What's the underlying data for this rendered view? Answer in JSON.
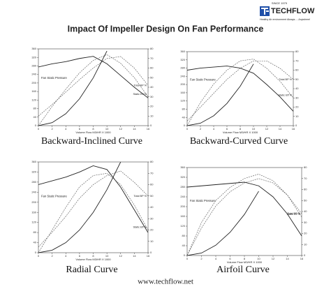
{
  "header": {
    "since": "SINCE 1979",
    "brand": "TECHFLOW",
    "tagline": "Healthy Air environment Always.....Anywhere!"
  },
  "title": "Impact Of Impeller Design On Fan Performance",
  "footer": "www.techflow.net",
  "chart_data": [
    {
      "type": "line",
      "title": "Backward-Inclined Curve",
      "x_label": "Volume Flow M3/HR X 1000",
      "y_label": "Fan Static Pressure",
      "x": [
        0,
        2,
        4,
        6,
        8,
        10,
        12,
        14,
        16
      ],
      "xlim": [
        0,
        16
      ],
      "xticks": [
        0,
        2,
        4,
        6,
        8,
        10,
        12,
        14,
        16
      ],
      "ylim": [
        0,
        360
      ],
      "yticks": [
        0,
        40,
        80,
        120,
        160,
        200,
        240,
        280,
        320,
        360
      ],
      "y2lim": [
        0,
        80
      ],
      "y2ticks": [
        0,
        10,
        20,
        30,
        40,
        50,
        60,
        70,
        80
      ],
      "series": [
        {
          "name": "Fan Static Pressure",
          "color": "#222222",
          "style": "solid",
          "values": [
            275,
            290,
            300,
            315,
            325,
            290,
            235,
            180,
            130
          ]
        },
        {
          "name": "Static Eff %",
          "color": "#555555",
          "style": "dashed",
          "axis": "y2",
          "values": [
            0,
            20,
            38,
            55,
            68,
            74,
            65,
            50,
            30
          ]
        },
        {
          "name": "Total BP %",
          "color": "#555555",
          "style": "dashed",
          "axis": "y2",
          "values": [
            10,
            22,
            35,
            48,
            60,
            70,
            72,
            60,
            42
          ]
        },
        {
          "color": "#222222",
          "style": "solid",
          "values": [
            0,
            14,
            56,
            126,
            224,
            350,
            null,
            null,
            null
          ]
        }
      ]
    },
    {
      "type": "line",
      "title": "Backward-Curved Curve",
      "x_label": "Volume Flow M3/HR X 1000",
      "y_label": "Fan Static Pressure",
      "x": [
        0,
        2,
        4,
        6,
        8,
        10,
        12,
        14,
        16
      ],
      "xlim": [
        0,
        16
      ],
      "xticks": [
        0,
        2,
        4,
        6,
        8,
        10,
        12,
        14,
        16
      ],
      "ylim": [
        0,
        360
      ],
      "yticks": [
        0,
        40,
        80,
        120,
        160,
        200,
        240,
        280,
        320,
        360
      ],
      "y2lim": [
        0,
        80
      ],
      "y2ticks": [
        0,
        10,
        20,
        30,
        40,
        50,
        60,
        70,
        80
      ],
      "series": [
        {
          "name": "Fan Static Pressure",
          "color": "#222222",
          "style": "solid",
          "values": [
            270,
            280,
            285,
            290,
            280,
            255,
            200,
            140,
            70
          ]
        },
        {
          "name": "Static Eff %",
          "color": "#555555",
          "style": "dashed",
          "axis": "y2",
          "values": [
            0,
            25,
            45,
            60,
            70,
            72,
            62,
            48,
            30
          ]
        },
        {
          "name": "Total BP %",
          "color": "#555555",
          "style": "dashed",
          "axis": "y2",
          "values": [
            5,
            20,
            35,
            50,
            62,
            70,
            70,
            62,
            50
          ]
        },
        {
          "color": "#222222",
          "style": "solid",
          "values": [
            0,
            12,
            48,
            108,
            192,
            300,
            null,
            null,
            null
          ]
        }
      ]
    },
    {
      "type": "line",
      "title": "Radial Curve",
      "x_label": "Volume Flow M3/HR X 1000",
      "y_label": "Fan Static Pressure",
      "x": [
        0,
        2,
        4,
        6,
        8,
        10,
        12,
        14,
        16
      ],
      "xlim": [
        0,
        16
      ],
      "xticks": [
        0,
        2,
        4,
        6,
        8,
        10,
        12,
        14,
        16
      ],
      "ylim": [
        0,
        360
      ],
      "yticks": [
        0,
        40,
        80,
        120,
        160,
        200,
        240,
        280,
        320,
        360
      ],
      "y2lim": [
        0,
        80
      ],
      "y2ticks": [
        0,
        10,
        20,
        30,
        40,
        50,
        60,
        70,
        80
      ],
      "series": [
        {
          "name": "Fan Static Pressure",
          "color": "#222222",
          "style": "solid",
          "values": [
            270,
            285,
            300,
            320,
            345,
            330,
            260,
            170,
            80
          ]
        },
        {
          "name": "Static Eff %",
          "color": "#555555",
          "style": "dashed",
          "axis": "y2",
          "values": [
            0,
            20,
            40,
            58,
            68,
            70,
            60,
            42,
            20
          ]
        },
        {
          "name": "Total BP %",
          "color": "#555555",
          "style": "dashed",
          "axis": "y2",
          "values": [
            5,
            18,
            32,
            48,
            60,
            68,
            72,
            62,
            50
          ]
        },
        {
          "color": "#222222",
          "style": "solid",
          "values": [
            0,
            10,
            40,
            90,
            160,
            250,
            360,
            null,
            null
          ]
        }
      ]
    },
    {
      "type": "line",
      "title": "Airfoil Curve",
      "x_label": "Volume Flow M3/HR X 1000",
      "y_label": "Fan Static Pressure",
      "x": [
        0,
        2,
        4,
        6,
        8,
        10,
        12,
        14,
        16
      ],
      "xlim": [
        0,
        16
      ],
      "xticks": [
        0,
        2,
        4,
        6,
        8,
        10,
        12,
        14,
        16
      ],
      "ylim": [
        0,
        360
      ],
      "yticks": [
        0,
        40,
        80,
        120,
        160,
        200,
        240,
        280,
        320,
        360
      ],
      "y2lim": [
        0,
        80
      ],
      "y2ticks": [
        0,
        10,
        20,
        30,
        40,
        50,
        60,
        70,
        80
      ],
      "series": [
        {
          "name": "Fan Static Pressure",
          "color": "#222222",
          "style": "solid",
          "values": [
            280,
            285,
            290,
            295,
            300,
            285,
            240,
            170,
            80
          ]
        },
        {
          "name": "Static Eff %",
          "color": "#555555",
          "style": "dashed",
          "axis": "y2",
          "values": [
            0,
            30,
            50,
            62,
            70,
            74,
            68,
            55,
            35
          ]
        },
        {
          "name": "Total BP %",
          "color": "#555555",
          "style": "dashed",
          "axis": "y2",
          "values": [
            0,
            25,
            45,
            58,
            66,
            70,
            66,
            55,
            38
          ]
        },
        {
          "color": "#222222",
          "style": "solid",
          "values": [
            0,
            10,
            42,
            95,
            168,
            263,
            null,
            null,
            null
          ]
        }
      ]
    }
  ]
}
